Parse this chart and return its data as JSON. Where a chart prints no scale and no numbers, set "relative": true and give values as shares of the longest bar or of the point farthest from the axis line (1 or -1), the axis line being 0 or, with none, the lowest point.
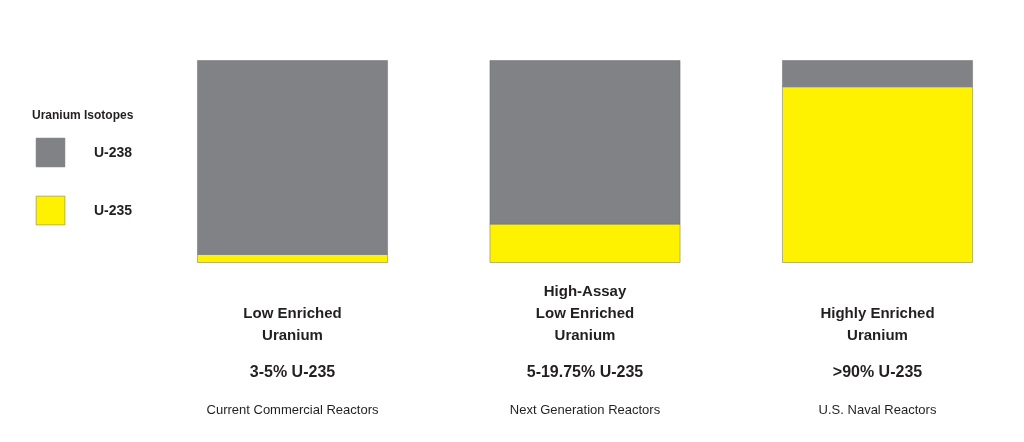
{
  "chart_data": {
    "type": "bar",
    "stacked": true,
    "relative": true,
    "categories": [
      "Low Enriched\nUranium",
      "High-Assay\nLow Enriched\nUranium",
      "Highly Enriched\nUranium"
    ],
    "legend_title": "Uranium Isotopes",
    "legend": "left",
    "grid": false,
    "series": [
      {
        "name": "U-235",
        "color": "#fff200",
        "values": [
          0.04,
          0.19,
          0.87
        ]
      },
      {
        "name": "U-238",
        "color": "#808285",
        "values": [
          0.96,
          0.81,
          0.13
        ]
      }
    ],
    "annotations": [
      "3-5% U-235",
      "5-19.75% U-235",
      ">90% U-235",
      "Current Commercial Reactors",
      "Next Generation Reactors",
      "U.S. Naval Reactors"
    ]
  }
}
